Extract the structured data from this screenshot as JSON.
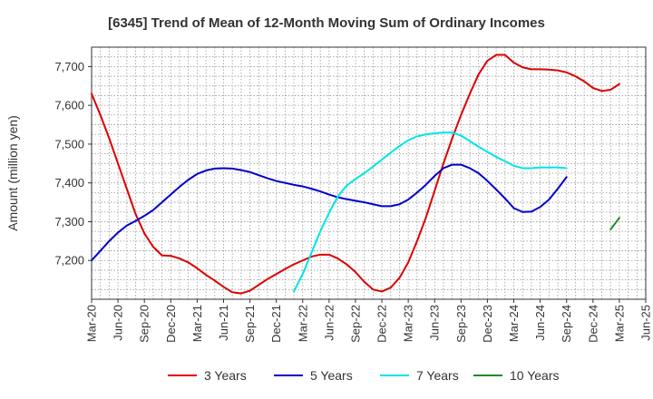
{
  "chart_data": {
    "type": "line",
    "title": "[6345]  Trend of Mean of 12-Month Moving Sum of Ordinary Incomes",
    "xlabel": "",
    "ylabel": "Amount (million yen)",
    "ylim": [
      7100,
      7750
    ],
    "y_ticks": [
      7200,
      7300,
      7400,
      7500,
      7600,
      7700
    ],
    "y_tick_labels": [
      "7,200",
      "7,300",
      "7,400",
      "7,500",
      "7,600",
      "7,700"
    ],
    "x_start": "Mar-20",
    "x_range_months": [
      0,
      63
    ],
    "x_ticks": [
      0,
      3,
      6,
      9,
      12,
      15,
      18,
      21,
      24,
      27,
      30,
      33,
      36,
      39,
      42,
      45,
      48,
      51,
      54,
      57,
      60,
      63
    ],
    "x_tick_labels": [
      "Mar-20",
      "Jun-20",
      "Sep-20",
      "Dec-20",
      "Mar-21",
      "Jun-21",
      "Sep-21",
      "Dec-21",
      "Mar-22",
      "Jun-22",
      "Sep-22",
      "Dec-22",
      "Mar-23",
      "Jun-23",
      "Sep-23",
      "Dec-23",
      "Mar-24",
      "Jun-24",
      "Sep-24",
      "Dec-24",
      "Mar-25",
      "Jun-25"
    ],
    "grid": true,
    "legend_position": "bottom",
    "series": [
      {
        "name": "3 Years",
        "color": "#dd0000",
        "x_start": 0,
        "values": [
          7630,
          7575,
          7515,
          7450,
          7385,
          7320,
          7270,
          7235,
          7213,
          7212,
          7205,
          7195,
          7180,
          7163,
          7148,
          7132,
          7118,
          7115,
          7122,
          7137,
          7152,
          7165,
          7178,
          7190,
          7200,
          7210,
          7215,
          7215,
          7205,
          7190,
          7170,
          7145,
          7125,
          7120,
          7130,
          7155,
          7195,
          7250,
          7310,
          7380,
          7450,
          7515,
          7575,
          7630,
          7680,
          7715,
          7730,
          7730,
          7710,
          7698,
          7693,
          7693,
          7692,
          7690,
          7685,
          7675,
          7662,
          7645,
          7637,
          7640,
          7655
        ]
      },
      {
        "name": "5 Years",
        "color": "#0000cc",
        "x_start": 0,
        "values": [
          7200,
          7225,
          7250,
          7272,
          7290,
          7302,
          7315,
          7330,
          7350,
          7370,
          7390,
          7408,
          7423,
          7432,
          7437,
          7438,
          7437,
          7433,
          7428,
          7420,
          7412,
          7405,
          7400,
          7395,
          7391,
          7385,
          7378,
          7370,
          7363,
          7358,
          7354,
          7350,
          7345,
          7340,
          7340,
          7345,
          7357,
          7375,
          7395,
          7418,
          7438,
          7447,
          7447,
          7438,
          7425,
          7405,
          7383,
          7360,
          7335,
          7325,
          7326,
          7338,
          7357,
          7385,
          7415
        ]
      },
      {
        "name": "7 Years",
        "color": "#00e5e5",
        "x_start": 23,
        "values": [
          7120,
          7165,
          7220,
          7275,
          7323,
          7365,
          7393,
          7410,
          7425,
          7442,
          7460,
          7478,
          7495,
          7510,
          7520,
          7525,
          7528,
          7530,
          7530,
          7522,
          7508,
          7493,
          7480,
          7467,
          7456,
          7444,
          7438,
          7438,
          7440,
          7440,
          7440,
          7438
        ]
      },
      {
        "name": "10 Years",
        "color": "#228822",
        "x_start": 59,
        "values": [
          7280,
          7310
        ]
      }
    ]
  }
}
